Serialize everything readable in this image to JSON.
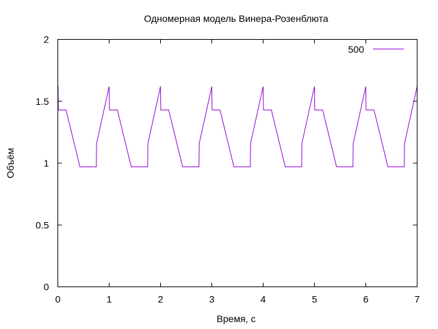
{
  "chart_data": {
    "type": "line",
    "title": "Одномерная модель Винера-Розенблюта",
    "xlabel": "Время, с",
    "ylabel": "Объём",
    "xlim": [
      0,
      7
    ],
    "ylim": [
      0,
      2
    ],
    "x_ticks": [
      "0",
      "1",
      "2",
      "3",
      "4",
      "5",
      "6",
      "7"
    ],
    "y_ticks": [
      "0",
      "0.5",
      "1",
      "1.5",
      "2"
    ],
    "grid": false,
    "legend_position": "top-right",
    "series": [
      {
        "name": "500",
        "color": "#9400d3",
        "x": [
          0,
          0.005,
          0.01,
          0.16,
          0.43,
          0.75,
          0.755,
          1.0,
          1.005,
          1.16,
          1.43,
          1.75,
          1.755,
          2.0,
          2.005,
          2.16,
          2.43,
          2.75,
          2.755,
          3.0,
          3.005,
          3.16,
          3.43,
          3.75,
          3.755,
          4.0,
          4.005,
          4.16,
          4.43,
          4.75,
          4.755,
          5.0,
          5.005,
          5.16,
          5.43,
          5.75,
          5.755,
          6.0,
          6.005,
          6.16,
          6.43,
          6.75,
          6.755,
          7.0
        ],
        "y": [
          1.62,
          1.62,
          1.43,
          1.43,
          0.97,
          0.97,
          1.16,
          1.62,
          1.43,
          1.43,
          0.97,
          0.97,
          1.16,
          1.62,
          1.43,
          1.43,
          0.97,
          0.97,
          1.16,
          1.62,
          1.43,
          1.43,
          0.97,
          0.97,
          1.16,
          1.62,
          1.43,
          1.43,
          0.97,
          0.97,
          1.16,
          1.62,
          1.43,
          1.43,
          0.97,
          0.97,
          1.16,
          1.62,
          1.43,
          1.43,
          0.97,
          0.97,
          1.16,
          1.62
        ]
      }
    ]
  }
}
